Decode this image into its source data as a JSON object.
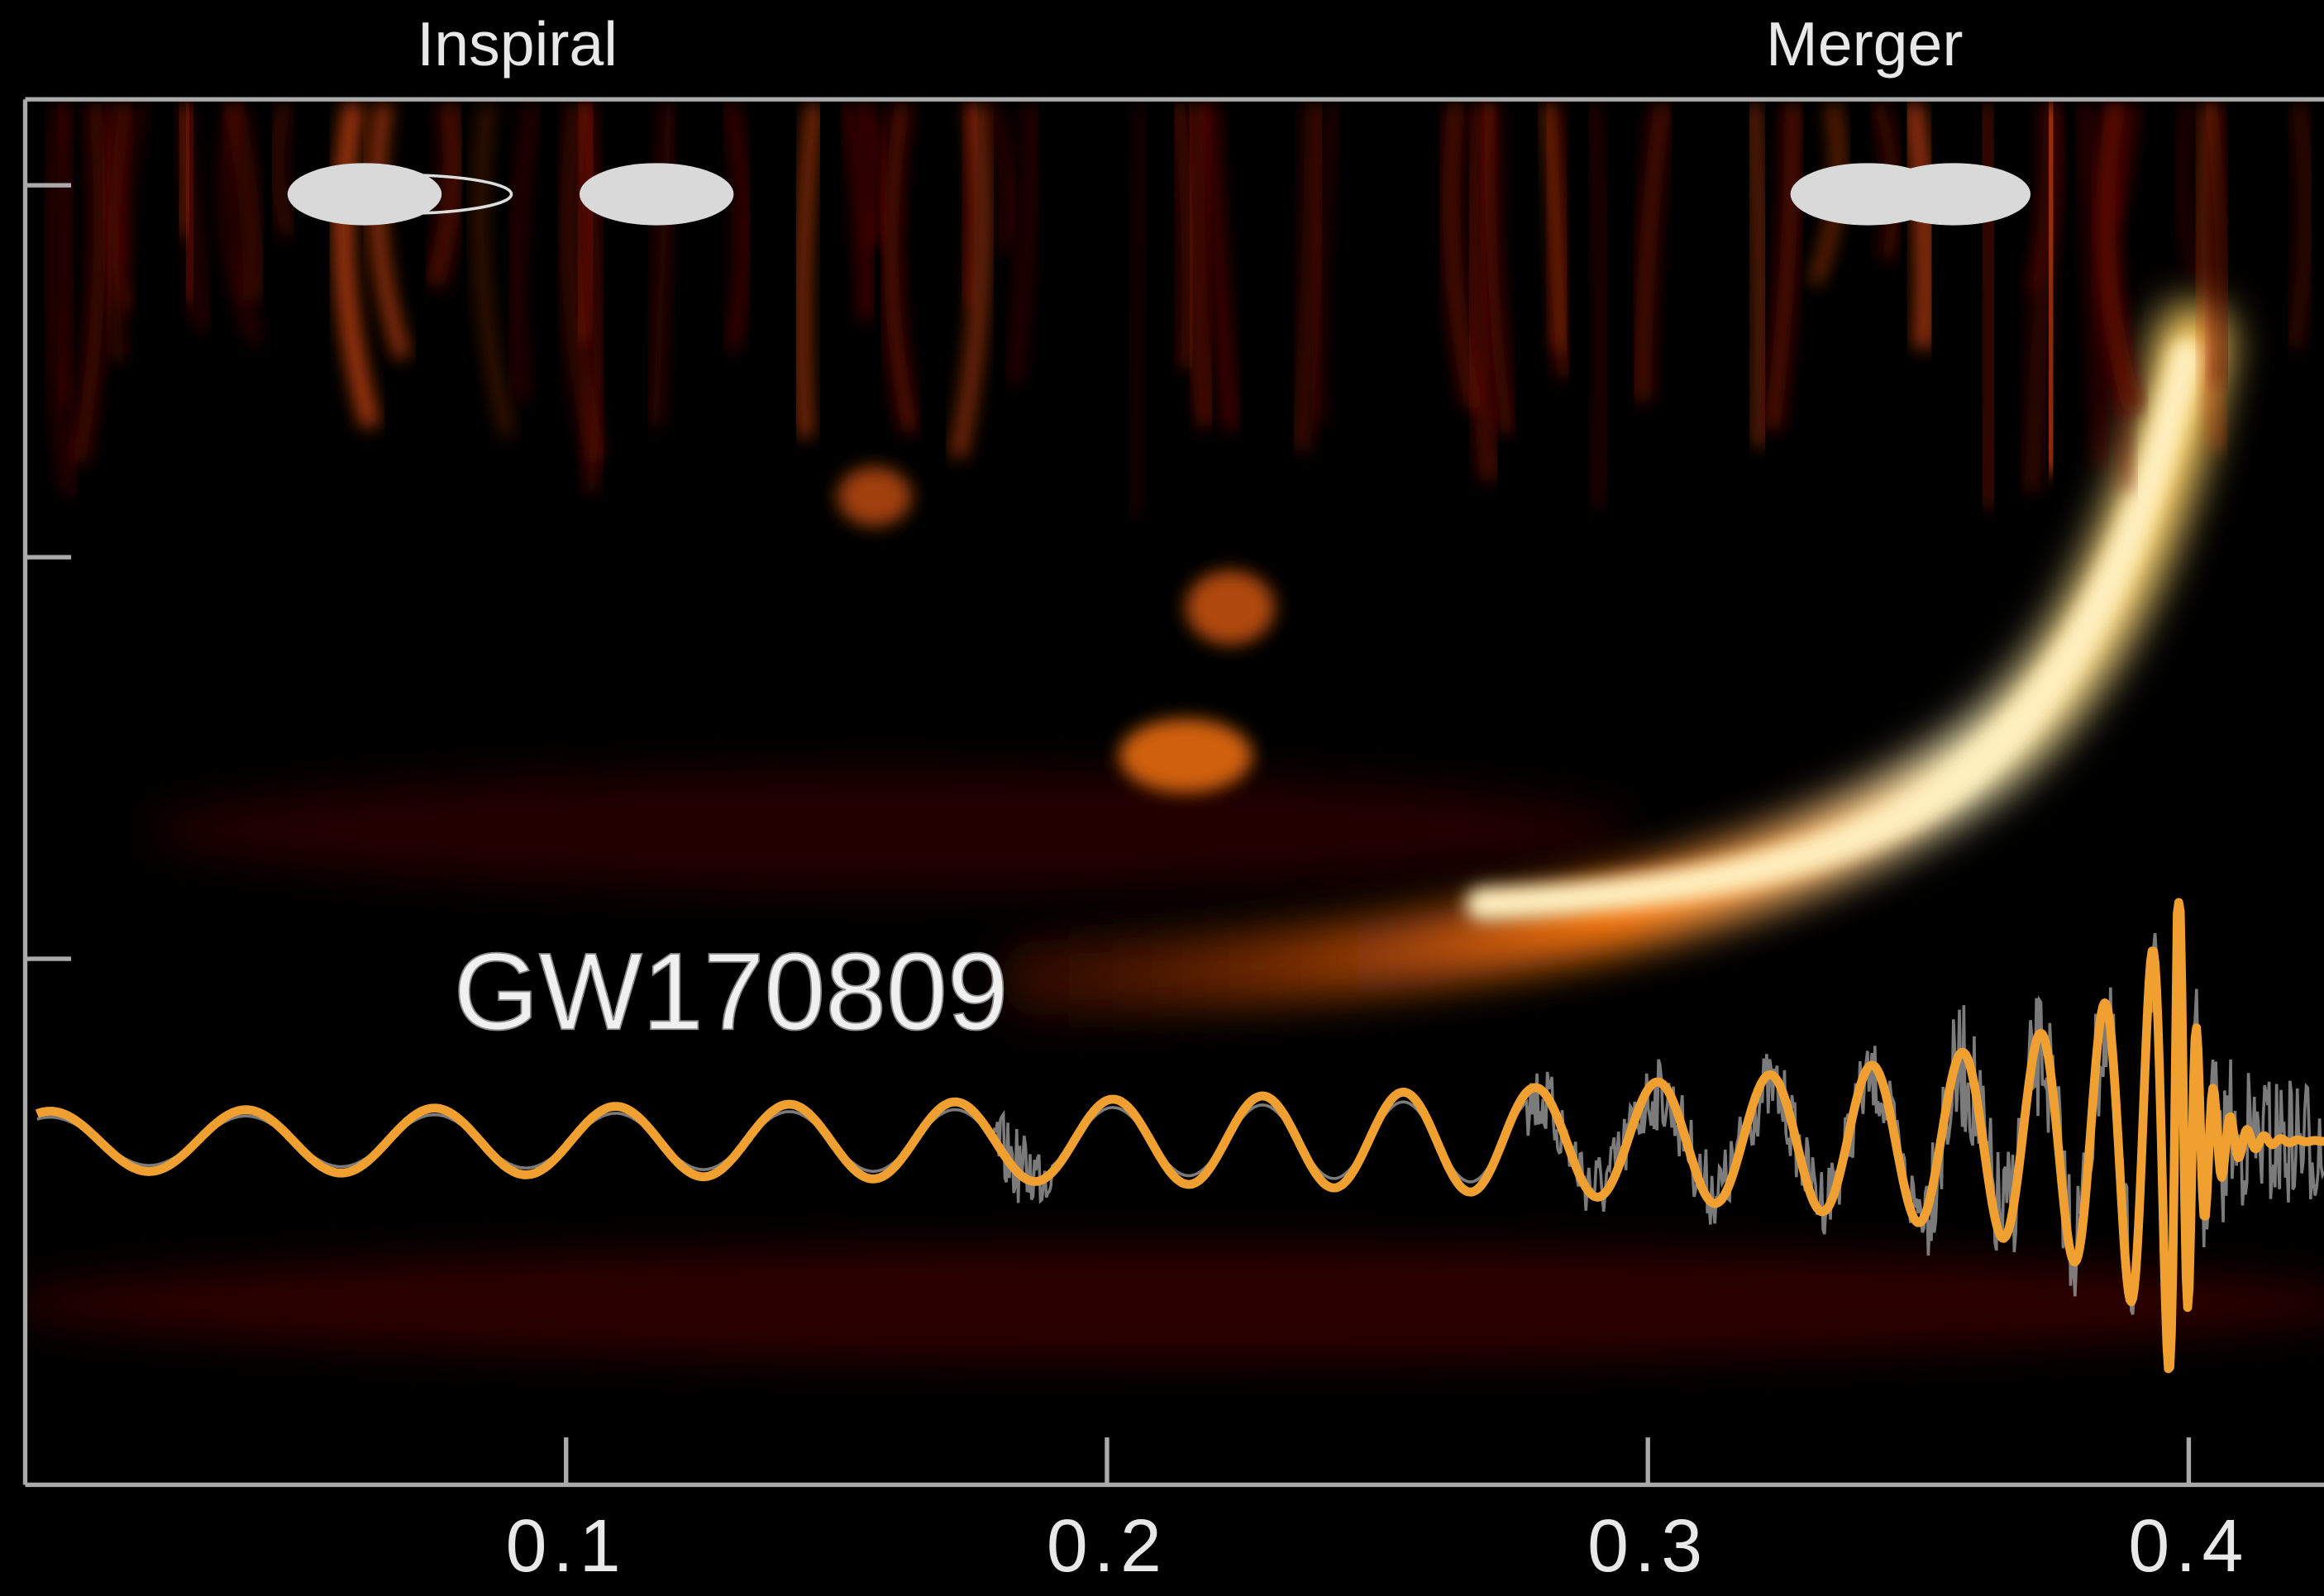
{
  "chart_data": {
    "type": "spectrogram",
    "annotations": [
      "Inspiral",
      "Merger",
      "GW170809"
    ],
    "xlim": [
      0,
      0.425
    ],
    "xticks": [
      0.1,
      0.2,
      0.3,
      0.4
    ]
  }
}
